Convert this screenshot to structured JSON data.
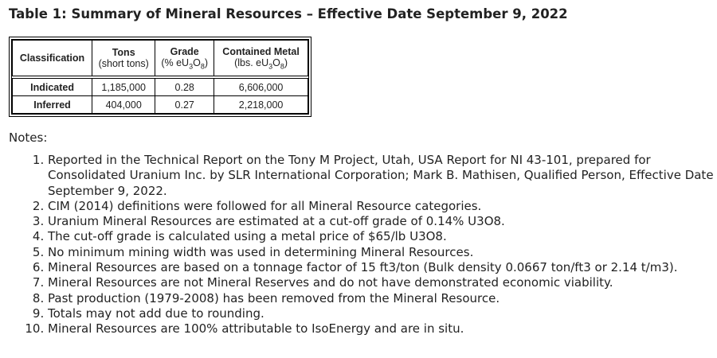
{
  "title": "Table 1: Summary of Mineral Resources – Effective Date September 9, 2022",
  "table": {
    "headers": [
      {
        "main": "Classification"
      },
      {
        "main": "Tons",
        "sub": "(short tons)"
      },
      {
        "main": "Grade",
        "sub_pre": "(% eU",
        "s1": "3",
        "mid": "O",
        "s2": "8",
        "post": ")"
      },
      {
        "main": "Contained Metal",
        "sub_pre": "(lbs. eU",
        "s1": "3",
        "mid": "O",
        "s2": "8",
        "post": ")"
      }
    ],
    "rows": [
      [
        "Indicated",
        "1,185,000",
        "0.28",
        "6,606,000"
      ],
      [
        "Inferred",
        "404,000",
        "0.27",
        "2,218,000"
      ]
    ]
  },
  "notes_label": "Notes:",
  "notes": [
    "Reported in the Technical Report on the Tony M Project, Utah, USA Report for NI 43-101, prepared for Consolidated Uranium Inc. by SLR International Corporation; Mark B. Mathisen, Qualified Person, Effective Date September 9, 2022.",
    "CIM (2014) definitions were followed for all Mineral Resource categories.",
    "Uranium Mineral Resources are estimated at a cut-off grade of 0.14% U3O8.",
    "The cut-off grade is calculated using a metal price of $65/lb U3O8.",
    "No minimum mining width was used in determining Mineral Resources.",
    "Mineral Resources are based on a tonnage factor of 15 ft3/ton (Bulk density 0.0667 ton/ft3 or 2.14 t/m3).",
    "Mineral Resources are not Mineral Reserves and do not have demonstrated economic viability.",
    "Past production (1979-2008) has been removed from the Mineral Resource.",
    "Totals may not add due to rounding.",
    "Mineral Resources are 100% attributable to IsoEnergy and are in situ."
  ]
}
